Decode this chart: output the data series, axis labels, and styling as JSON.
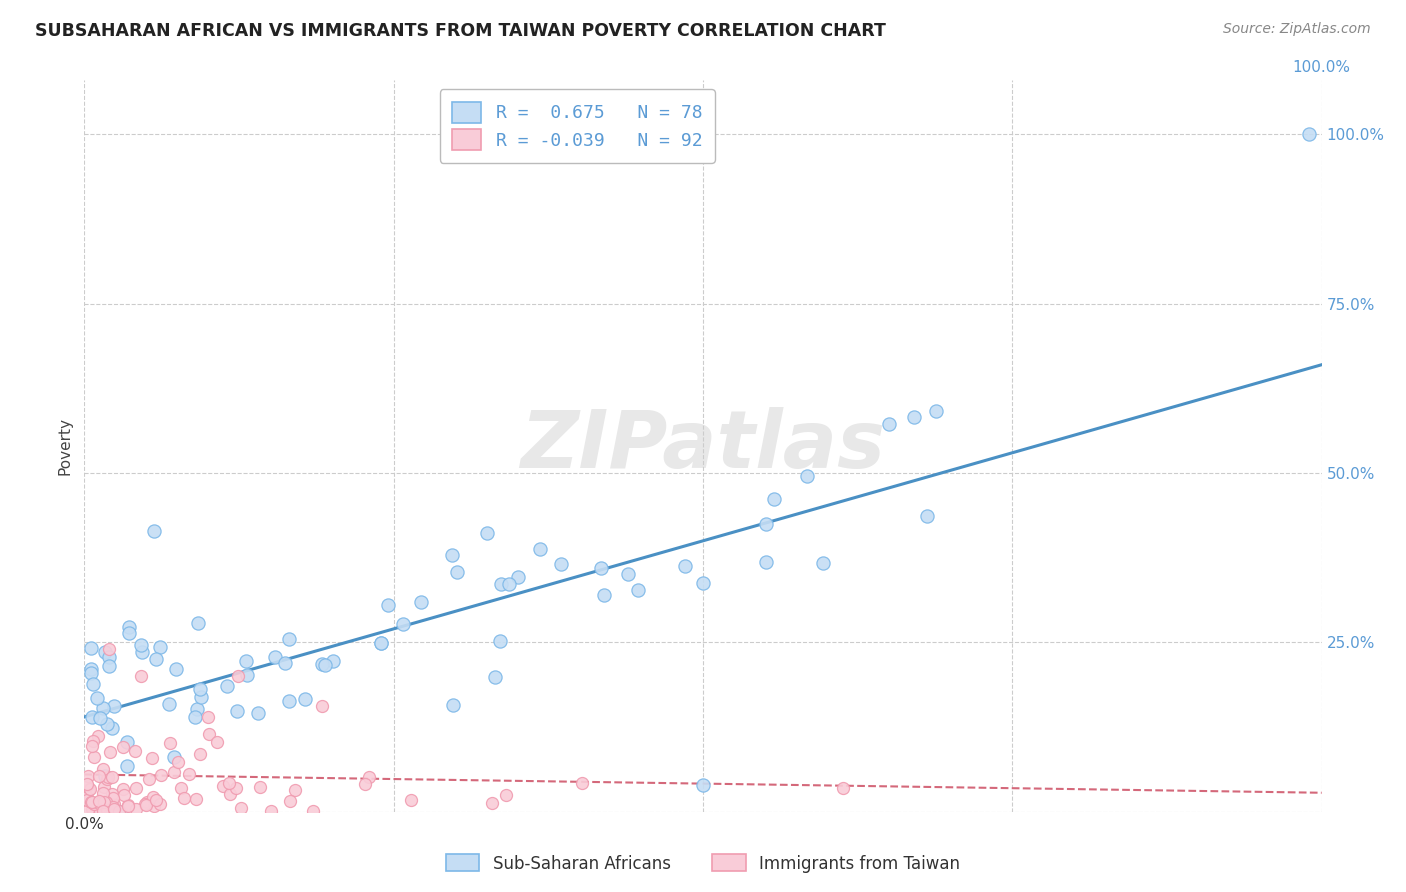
{
  "title": "SUBSAHARAN AFRICAN VS IMMIGRANTS FROM TAIWAN POVERTY CORRELATION CHART",
  "source": "Source: ZipAtlas.com",
  "ylabel": "Poverty",
  "watermark": "ZIPatlas",
  "blue_R": 0.675,
  "blue_N": 78,
  "pink_R": -0.039,
  "pink_N": 92,
  "blue_color": "#7db8e8",
  "blue_fill": "#c5ddf4",
  "pink_color": "#f09cb0",
  "pink_fill": "#f9ccd8",
  "line_blue": "#4a90c4",
  "line_pink": "#d4687a",
  "legend_label_blue": "Sub-Saharan Africans",
  "legend_label_pink": "Immigrants from Taiwan",
  "xlim": [
    0.0,
    1.0
  ],
  "ylim": [
    0.0,
    1.08
  ],
  "xticks": [
    0.0,
    0.25,
    0.5,
    0.75,
    1.0
  ],
  "yticks": [
    0.0,
    0.25,
    0.5,
    0.75,
    1.0
  ],
  "grid_color": "#cccccc",
  "background_color": "#ffffff",
  "title_color": "#222222",
  "source_color": "#888888",
  "tick_color_right": "#5b9bd5",
  "tick_color_bottom": "#333333"
}
